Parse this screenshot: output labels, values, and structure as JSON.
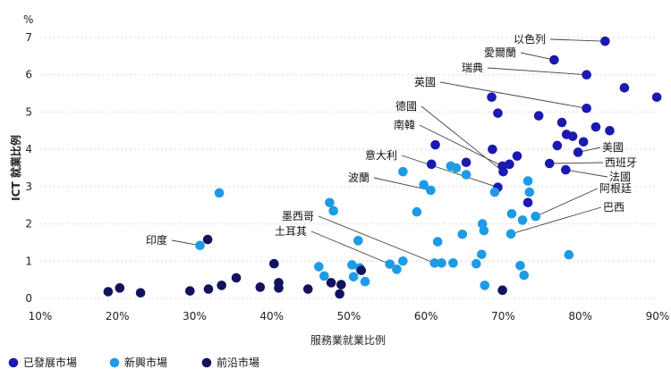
{
  "chart_data": {
    "type": "scatter",
    "title": "",
    "xlabel": "服務業就業比例",
    "ylabel": "ICT 就業比例",
    "y_unit": "%",
    "xlim": [
      10,
      90
    ],
    "ylim": [
      0,
      7
    ],
    "x_ticks": [
      "10%",
      "20%",
      "30%",
      "40%",
      "50%",
      "60%",
      "70%",
      "80%",
      "90%"
    ],
    "y_ticks": [
      "0",
      "1",
      "2",
      "3",
      "4",
      "5",
      "6",
      "7"
    ],
    "grid": true,
    "legend_position": "bottom-left",
    "series": [
      {
        "name": "已發展市場",
        "color": "#1a1ab0",
        "points": [
          [
            83.2,
            6.9
          ],
          [
            76.6,
            6.4
          ],
          [
            80.8,
            6.0
          ],
          [
            85.7,
            5.65
          ],
          [
            89.9,
            5.4
          ],
          [
            68.5,
            5.4
          ],
          [
            80.8,
            5.1
          ],
          [
            69.3,
            4.97
          ],
          [
            74.6,
            4.9
          ],
          [
            82.0,
            4.6
          ],
          [
            83.8,
            4.5
          ],
          [
            77.6,
            4.72
          ],
          [
            78.2,
            4.4
          ],
          [
            79.0,
            4.35
          ],
          [
            80.4,
            4.2
          ],
          [
            77.0,
            4.1
          ],
          [
            61.2,
            4.12
          ],
          [
            68.6,
            4.0
          ],
          [
            79.7,
            3.92
          ],
          [
            71.8,
            3.82
          ],
          [
            65.2,
            3.65
          ],
          [
            69.9,
            3.55
          ],
          [
            70.8,
            3.6
          ],
          [
            76.0,
            3.62
          ],
          [
            60.7,
            3.6
          ],
          [
            78.1,
            3.45
          ],
          [
            69.3,
            2.98
          ],
          [
            73.2,
            2.57
          ],
          [
            70.0,
            3.4
          ]
        ]
      },
      {
        "name": "新興市場",
        "color": "#1e9be6",
        "points": [
          [
            33.2,
            2.83
          ],
          [
            30.7,
            1.42
          ],
          [
            57.0,
            3.4
          ],
          [
            59.7,
            3.05
          ],
          [
            60.6,
            2.9
          ],
          [
            63.2,
            3.55
          ],
          [
            63.9,
            3.5
          ],
          [
            65.2,
            3.32
          ],
          [
            68.9,
            2.85
          ],
          [
            73.4,
            2.85
          ],
          [
            73.2,
            3.15
          ],
          [
            71.1,
            2.27
          ],
          [
            72.5,
            2.1
          ],
          [
            74.2,
            2.2
          ],
          [
            67.3,
            2.0
          ],
          [
            67.5,
            1.82
          ],
          [
            58.8,
            2.32
          ],
          [
            47.5,
            2.57
          ],
          [
            48.0,
            2.35
          ],
          [
            51.2,
            1.55
          ],
          [
            61.5,
            1.52
          ],
          [
            64.7,
            1.72
          ],
          [
            71.0,
            1.73
          ],
          [
            67.2,
            1.18
          ],
          [
            78.5,
            1.17
          ],
          [
            57.0,
            1.0
          ],
          [
            61.1,
            0.95
          ],
          [
            62.0,
            0.95
          ],
          [
            63.5,
            0.95
          ],
          [
            66.5,
            0.93
          ],
          [
            46.1,
            0.85
          ],
          [
            50.4,
            0.9
          ],
          [
            51.4,
            0.82
          ],
          [
            55.3,
            0.92
          ],
          [
            56.2,
            0.78
          ],
          [
            72.2,
            0.88
          ],
          [
            72.7,
            0.62
          ],
          [
            46.8,
            0.6
          ],
          [
            50.6,
            0.58
          ],
          [
            52.1,
            0.45
          ],
          [
            67.6,
            0.35
          ]
        ]
      },
      {
        "name": "前沿市場",
        "color": "#12125e",
        "points": [
          [
            31.7,
            1.58
          ],
          [
            40.3,
            0.93
          ],
          [
            40.9,
            0.42
          ],
          [
            40.9,
            0.28
          ],
          [
            38.5,
            0.3
          ],
          [
            35.4,
            0.55
          ],
          [
            33.5,
            0.35
          ],
          [
            31.8,
            0.25
          ],
          [
            29.4,
            0.2
          ],
          [
            23.0,
            0.15
          ],
          [
            20.3,
            0.28
          ],
          [
            18.8,
            0.18
          ],
          [
            44.7,
            0.25
          ],
          [
            47.7,
            0.42
          ],
          [
            49.0,
            0.37
          ],
          [
            48.8,
            0.12
          ],
          [
            51.6,
            0.75
          ],
          [
            69.9,
            0.22
          ]
        ]
      }
    ],
    "annotations": [
      {
        "text": "以色列",
        "point": [
          83.2,
          6.9
        ]
      },
      {
        "text": "愛爾蘭",
        "point": [
          76.6,
          6.4
        ]
      },
      {
        "text": "瑞典",
        "point": [
          80.8,
          6.0
        ]
      },
      {
        "text": "英國",
        "point": [
          80.8,
          5.1
        ]
      },
      {
        "text": "德國",
        "point": [
          70.0,
          3.4
        ]
      },
      {
        "text": "南韓",
        "point": [
          69.9,
          3.55
        ]
      },
      {
        "text": "美國",
        "point": [
          79.7,
          3.92
        ]
      },
      {
        "text": "西班牙",
        "point": [
          76.0,
          3.62
        ]
      },
      {
        "text": "法國",
        "point": [
          78.1,
          3.45
        ]
      },
      {
        "text": "意大利",
        "point": [
          69.3,
          2.98
        ]
      },
      {
        "text": "波蘭",
        "point": [
          60.6,
          2.9
        ]
      },
      {
        "text": "阿根廷",
        "point": [
          74.2,
          2.2
        ]
      },
      {
        "text": "巴西",
        "point": [
          71.0,
          1.73
        ]
      },
      {
        "text": "墨西哥",
        "point": [
          61.1,
          0.95
        ]
      },
      {
        "text": "土耳其",
        "point": [
          55.3,
          0.92
        ]
      },
      {
        "text": "印度",
        "point": [
          30.7,
          1.42
        ]
      }
    ]
  }
}
